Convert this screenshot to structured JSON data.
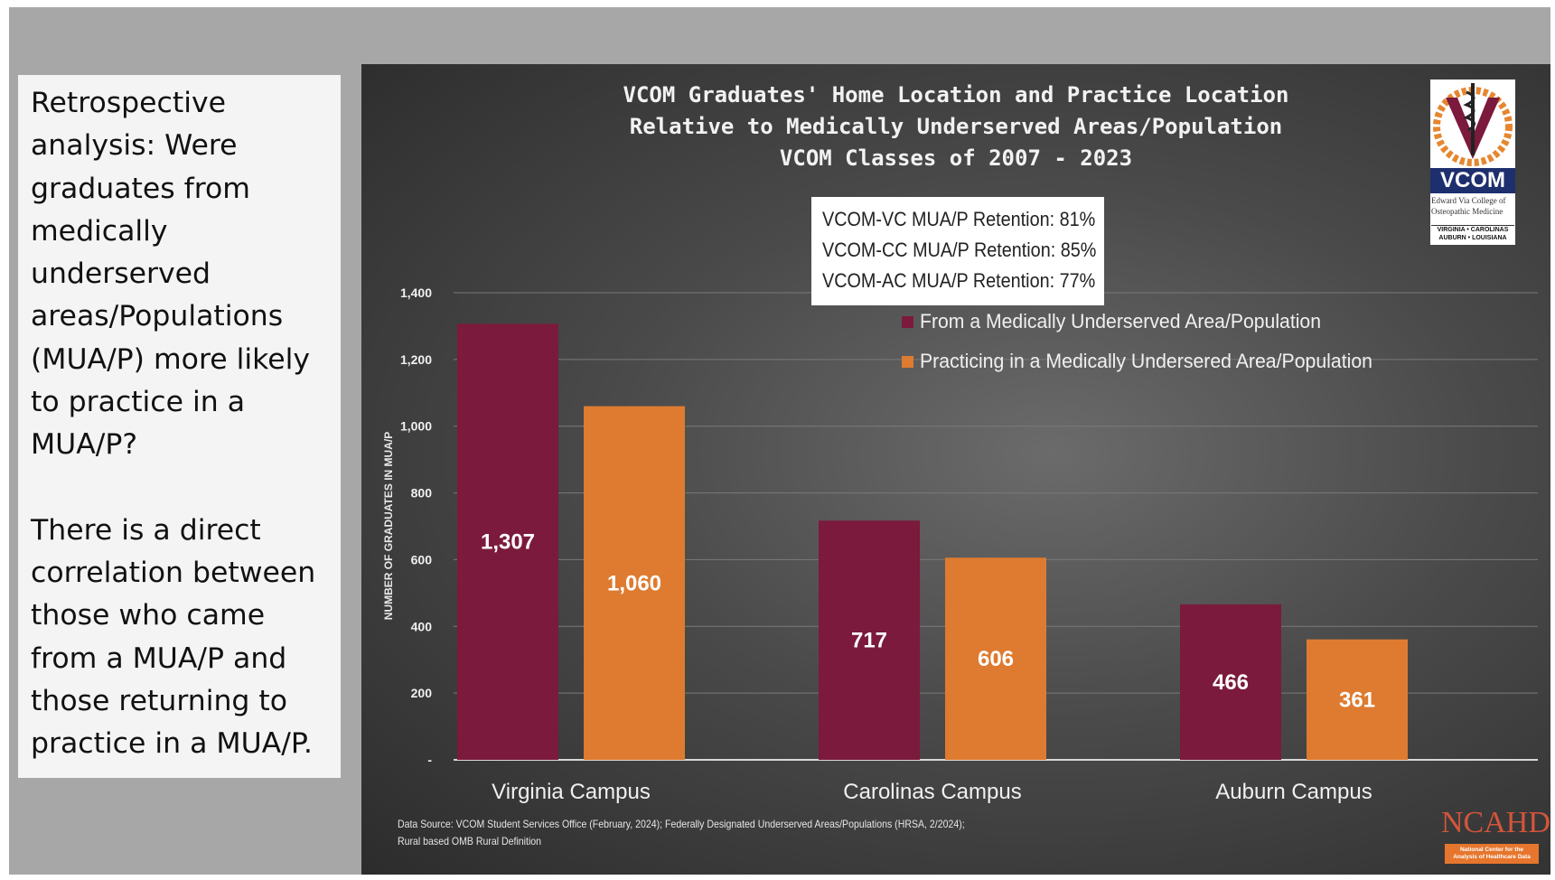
{
  "side_text": {
    "lines_1": [
      "Retrospective",
      "analysis:  Were",
      "graduates from",
      "medically",
      "underserved",
      "areas/Populations",
      "(MUA/P) more likely",
      "to practice in a",
      "MUA/P?"
    ],
    "lines_2": [
      "There is a direct",
      "correlation between",
      "those who came",
      "from a MUA/P and",
      "those returning to",
      "practice in a MUA/P."
    ]
  },
  "chart_data": {
    "type": "bar",
    "title_lines": [
      "VCOM Graduates' Home Location and Practice Location",
      "Relative to Medically Underserved Areas/Population",
      "VCOM Classes of 2007 - 2023"
    ],
    "categories": [
      "Virginia Campus",
      "Carolinas Campus",
      "Auburn Campus"
    ],
    "series": [
      {
        "name": "From a Medically Underserved Area/Population",
        "values": [
          1307,
          717,
          466
        ],
        "labels": [
          "1,307",
          "717",
          "466"
        ],
        "color": "#7b1a3c"
      },
      {
        "name": "Practicing in a Medically Undersered Area/Population",
        "values": [
          1060,
          606,
          361
        ],
        "labels": [
          "1,060",
          "606",
          "361"
        ],
        "color": "#de7b30"
      }
    ],
    "ylabel": "NUMBER OF GRADUATES IN MUA/P",
    "xlabel": "",
    "ylim": [
      0,
      1400
    ],
    "yticks": [
      0,
      200,
      400,
      600,
      800,
      1000,
      1200,
      1400
    ],
    "ytick_labels": [
      "-",
      "200",
      "400",
      "600",
      "800",
      "1,000",
      "1,200",
      "1,400"
    ],
    "grid": true,
    "legend_position": "right",
    "retention_notes": [
      "VCOM-VC MUA/P Retention: 81%",
      "VCOM-CC MUA/P Retention: 85%",
      "VCOM-AC MUA/P Retention: 77%"
    ]
  },
  "logo": {
    "name": "VCOM",
    "subtitle_lines": [
      "Edward Via College of",
      "Osteopathic Medicine"
    ],
    "campuses_lines": [
      "VIRGINIA • CAROLINAS",
      "AUBURN • LOUISIANA"
    ]
  },
  "source_lines": [
    "Data Source: VCOM Student Services Office (February, 2024); Federally Designated Underserved Areas/Populations (HRSA, 2/2024);",
    "Rural based OMB Rural Definition"
  ],
  "ncahd": {
    "name": "NCAHD",
    "subtitle_lines": [
      "National Center for the",
      "Analysis of Healthcare Data"
    ]
  },
  "colors": {
    "panel_bg": "#3a3a3a",
    "maroon": "#7b1a3c",
    "orange": "#de7b30",
    "slide_bg": "#a7a7a7"
  }
}
